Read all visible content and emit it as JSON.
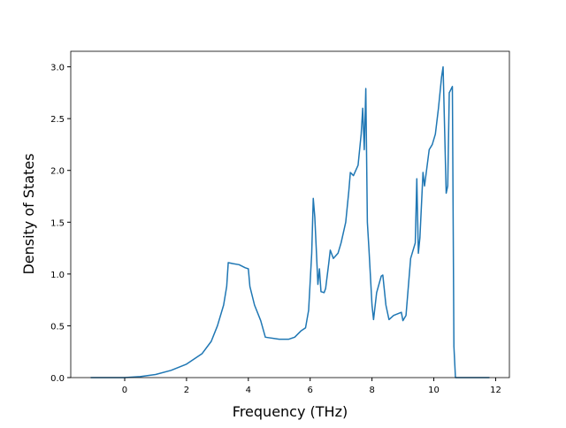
{
  "chart_data": {
    "type": "line",
    "xlabel": "Frequency (THz)",
    "ylabel": "Density of States",
    "xlim": [
      -1.745,
      12.445
    ],
    "ylim": [
      0,
      3.15
    ],
    "xticks": [
      0,
      2,
      4,
      6,
      8,
      10,
      12
    ],
    "yticks": [
      {
        "value": 0,
        "label": "0.0"
      },
      {
        "value": 0.5,
        "label": "0.5"
      },
      {
        "value": 1,
        "label": "1.0"
      },
      {
        "value": 1.5,
        "label": "1.5"
      },
      {
        "value": 2,
        "label": "2.0"
      },
      {
        "value": 2.5,
        "label": "2.5"
      },
      {
        "value": 3,
        "label": "3.0"
      }
    ],
    "grid": false,
    "x": [
      -1.1,
      0,
      0.5,
      1,
      1.5,
      2,
      2.5,
      2.8,
      3.0,
      3.2,
      3.3,
      3.35,
      3.5,
      3.7,
      3.9,
      4.0,
      4.05,
      4.2,
      4.4,
      4.55,
      5.0,
      5.3,
      5.5,
      5.7,
      5.85,
      5.95,
      6.05,
      6.1,
      6.15,
      6.25,
      6.3,
      6.35,
      6.45,
      6.5,
      6.6,
      6.65,
      6.75,
      6.9,
      7.0,
      7.15,
      7.25,
      7.3,
      7.4,
      7.55,
      7.65,
      7.7,
      7.75,
      7.8,
      7.85,
      7.9,
      8.0,
      8.05,
      8.15,
      8.3,
      8.35,
      8.45,
      8.55,
      8.7,
      8.95,
      9.0,
      9.1,
      9.25,
      9.4,
      9.45,
      9.5,
      9.55,
      9.65,
      9.7,
      9.85,
      9.95,
      10.05,
      10.15,
      10.25,
      10.3,
      10.4,
      10.45,
      10.5,
      10.6,
      10.65,
      10.7,
      11.8
    ],
    "series": [
      {
        "name": "DOS",
        "color": "#1f77b4",
        "values": [
          0,
          0,
          0.01,
          0.03,
          0.07,
          0.13,
          0.23,
          0.35,
          0.5,
          0.7,
          0.88,
          1.11,
          1.1,
          1.09,
          1.06,
          1.05,
          0.88,
          0.7,
          0.55,
          0.39,
          0.37,
          0.37,
          0.39,
          0.45,
          0.48,
          0.65,
          1.2,
          1.73,
          1.55,
          0.9,
          1.05,
          0.83,
          0.82,
          0.86,
          1.1,
          1.23,
          1.15,
          1.2,
          1.3,
          1.5,
          1.8,
          1.98,
          1.95,
          2.05,
          2.35,
          2.6,
          2.2,
          2.79,
          1.5,
          1.25,
          0.7,
          0.56,
          0.82,
          0.98,
          0.99,
          0.7,
          0.56,
          0.6,
          0.63,
          0.55,
          0.6,
          1.15,
          1.3,
          1.92,
          1.2,
          1.35,
          1.98,
          1.85,
          2.2,
          2.25,
          2.35,
          2.6,
          2.9,
          3.0,
          1.78,
          1.85,
          2.75,
          2.81,
          0.3,
          0,
          0
        ]
      }
    ]
  }
}
